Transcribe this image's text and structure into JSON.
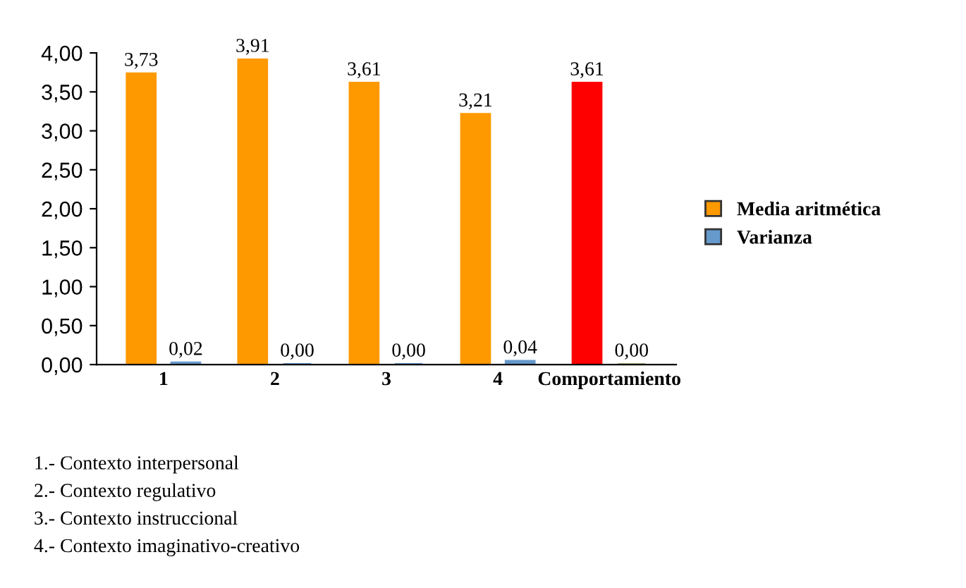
{
  "chart_data": {
    "type": "bar",
    "categories": [
      "1",
      "2",
      "3",
      "4",
      "Comportamiento"
    ],
    "series": [
      {
        "name": "Media aritmética",
        "color": "#ff9900",
        "colors": [
          "#ff9900",
          "#ff9900",
          "#ff9900",
          "#ff9900",
          "#ff0000"
        ],
        "values": [
          3.73,
          3.91,
          3.61,
          3.21,
          3.61
        ],
        "value_labels": [
          "3,73",
          "3,91",
          "3,61",
          "3,21",
          "3,61"
        ]
      },
      {
        "name": "Varianza",
        "color": "#6699cc",
        "colors": [
          "#6699cc",
          "#6699cc",
          "#6699cc",
          "#6699cc",
          "#b3b380"
        ],
        "values": [
          0.02,
          0.0,
          0.0,
          0.04,
          0.0
        ],
        "value_labels": [
          "0,02",
          "0,00",
          "0,00",
          "0,04",
          "0,00"
        ]
      }
    ],
    "ylim": [
      0,
      4
    ],
    "yticks": [
      {
        "value": 0,
        "label": "0,00"
      },
      {
        "value": 0.5,
        "label": "0,50"
      },
      {
        "value": 1,
        "label": "1,00"
      },
      {
        "value": 1.5,
        "label": "1,50"
      },
      {
        "value": 2,
        "label": "2,00"
      },
      {
        "value": 2.5,
        "label": "2,50"
      },
      {
        "value": 3,
        "label": "3,00"
      },
      {
        "value": 3.5,
        "label": "3,50"
      },
      {
        "value": 4,
        "label": "4,00"
      }
    ],
    "legend": "right",
    "annotations": [
      "1.- Contexto interpersonal",
      "2.- Contexto regulativo",
      "3.- Contexto instruccional",
      "4.- Contexto imaginativo-creativo"
    ]
  }
}
